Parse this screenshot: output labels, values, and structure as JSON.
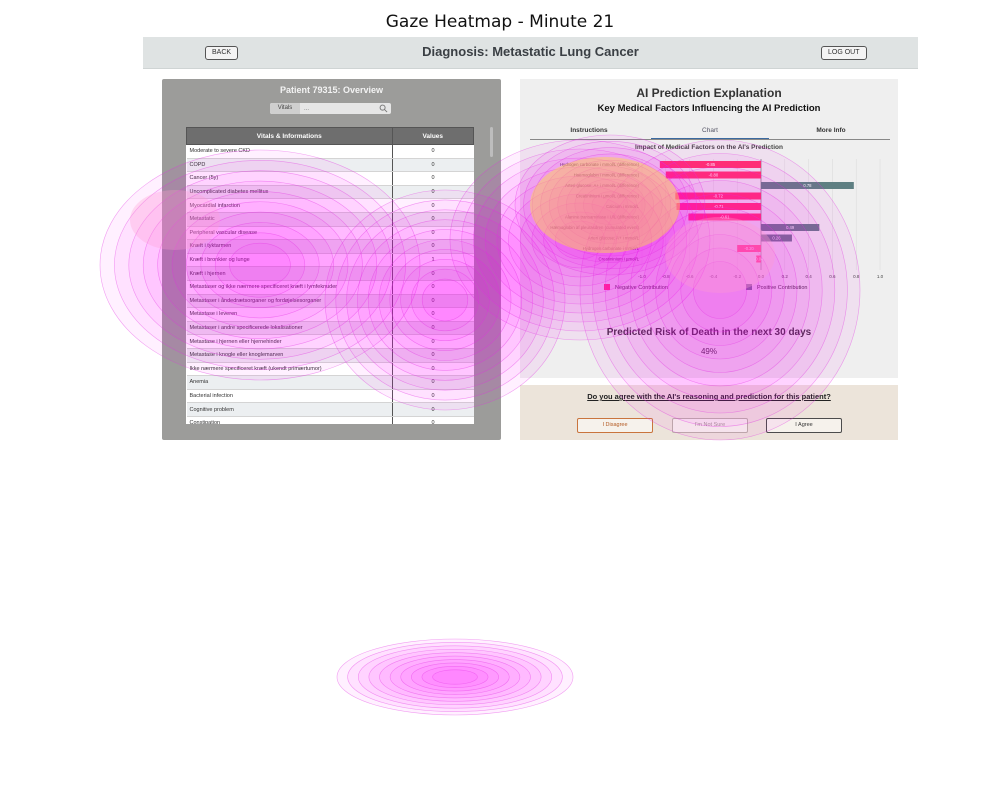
{
  "figure": {
    "title": "Gaze Heatmap - Minute 21"
  },
  "header": {
    "back_label": "BACK",
    "title": "Diagnosis: Metastatic Lung Cancer",
    "logout_label": "LOG OUT"
  },
  "left_panel": {
    "title": "Patient 79315: Overview",
    "search": {
      "category": "Vitals",
      "placeholder": "..."
    },
    "table": {
      "headers": [
        "Vitals & Informations",
        "Values"
      ],
      "rows": [
        [
          "Moderate to severe CKD",
          "0"
        ],
        [
          "COPD",
          "0"
        ],
        [
          "Cancer (5y)",
          "0"
        ],
        [
          "Uncomplicated diabetes mellitus",
          "0"
        ],
        [
          "Myocardial infarction",
          "0"
        ],
        [
          "Metastatic",
          "0"
        ],
        [
          "Peripheral vascular disease",
          "0"
        ],
        [
          "Kræft i tyktarmen",
          "0"
        ],
        [
          "Kræft i bronkier og lunge",
          "1"
        ],
        [
          "Kræft i hjernen",
          "0"
        ],
        [
          "Metastaser og ikke nærmere specificeret kræft i lymfeknuder",
          "0"
        ],
        [
          "Metastaser i åndedrætsorganer og fordøjelsesorganer",
          "0"
        ],
        [
          "Metastase i leveren",
          "0"
        ],
        [
          "Metastaser i andre specificerede lokalisationer",
          "0"
        ],
        [
          "Metastase i hjernen eller hjernehinder",
          "0"
        ],
        [
          "Metastase i knogle eller knoglemarven",
          "0"
        ],
        [
          "Ikke nærmere specificeret kræft (ukendt primærtumor)",
          "0"
        ],
        [
          "Anemia",
          "0"
        ],
        [
          "Bacterial infection",
          "0"
        ],
        [
          "Cognitive problem",
          "0"
        ],
        [
          "Constipation",
          "0"
        ]
      ]
    }
  },
  "right_panel": {
    "title": "AI Prediction Explanation",
    "subtitle": "Key Medical Factors Influencing the AI Prediction",
    "tabs": [
      "Instructions",
      "Chart",
      "More Info"
    ],
    "active_tab": "Chart",
    "risk_title": "Predicted Risk of Death in the next 30 days",
    "risk_value": "49%"
  },
  "agree_panel": {
    "question": "Do you agree with the AI's reasoning and prediction for this patient?",
    "buttons": [
      "I Disagree",
      "I'm Not Sure",
      "I Agree"
    ]
  },
  "chart_data": {
    "type": "bar",
    "orientation": "horizontal",
    "title": "Impact of Medical Factors on the AI's Prediction",
    "categories": [
      "Hydrogen carbonate i mmol/L (difference)",
      "Haemoglobin i mmol/L (difference)",
      "Arteri glucose; A+ i mmol/L (difference)",
      "Creatininium i µmol/L (difference)",
      "Calcium i mmol/L",
      "Alanine transaminase i U/L (difference)",
      "Hæmoglobin af pleurasdren (cumulated event)",
      "Arteri glucose; A+ i mmol/L",
      "Hydrogen carbonate i mmol/L",
      "Creatininium i µmol/L"
    ],
    "values": [
      -0.85,
      -0.8,
      0.78,
      -0.72,
      -0.71,
      -0.61,
      0.49,
      0.26,
      -0.2,
      -0.04
    ],
    "data_labels": [
      "-0.85",
      "-0.80",
      "0.78",
      "-0.72",
      "-0.71",
      "-0.61",
      "0.49",
      "0.26",
      "-0.20",
      "-0.04"
    ],
    "xlim": [
      -1.0,
      1.0
    ],
    "xticks": [
      "-1.0",
      "-0.8",
      "-0.6",
      "-0.4",
      "-0.2",
      "0.0",
      "0.2",
      "0.4",
      "0.6",
      "0.8",
      "1.0"
    ],
    "legend": [
      "Negative Contribution",
      "Positive Contribution"
    ],
    "colors": {
      "negative": "#ff3366",
      "positive": "#5e7f82"
    },
    "grid": true
  },
  "heatmap_colors": {
    "fill": "#ff00ff",
    "line": "#e22ee2",
    "hot_core": "#ffd84a",
    "warm": "#ff9bd0"
  }
}
